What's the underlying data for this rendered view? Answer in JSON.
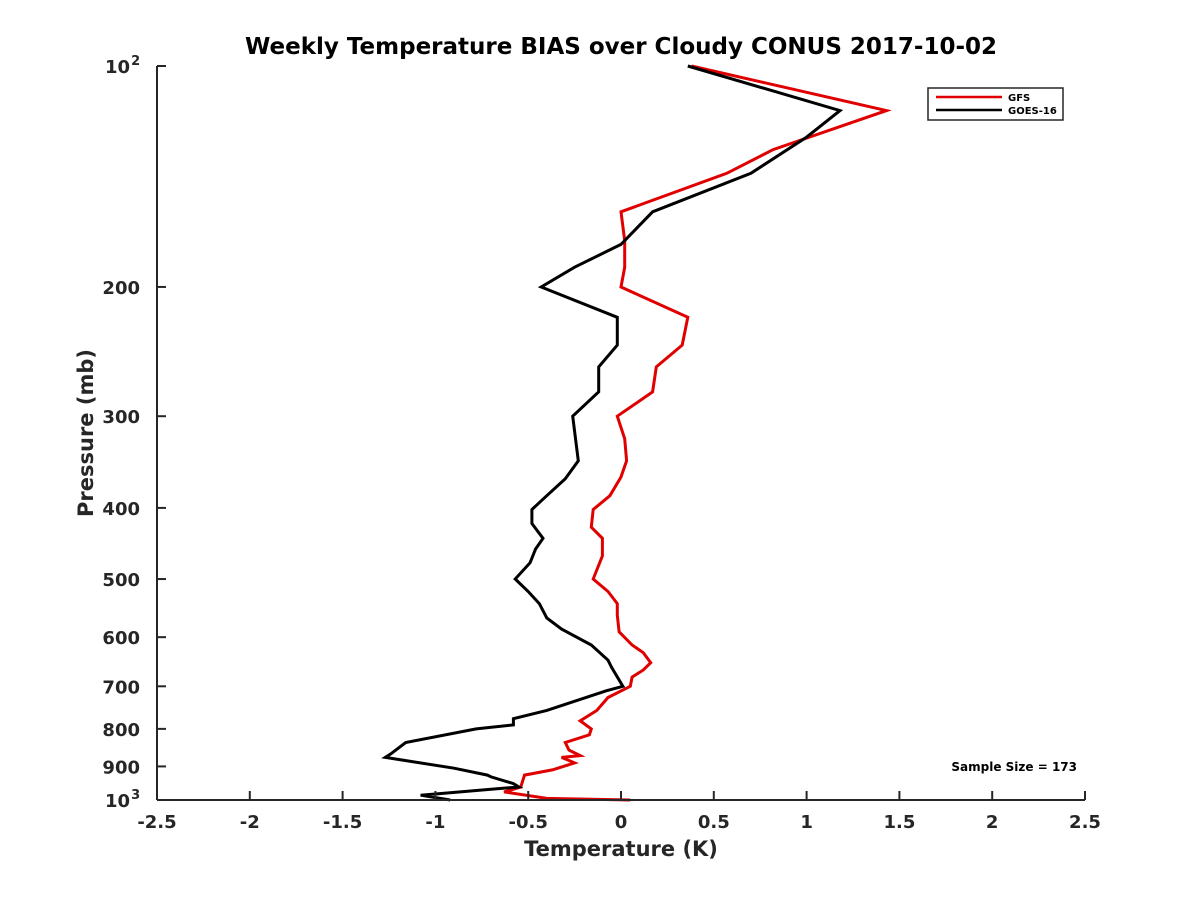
{
  "chart_data": {
    "type": "line",
    "title": "Weekly Temperature BIAS over Cloudy CONUS 2017-10-02",
    "xlabel": "Temperature (K)",
    "ylabel": "Pressure (mb)",
    "xlim": [
      -2.5,
      2.5
    ],
    "ylim": [
      100,
      1000
    ],
    "y_scale": "log",
    "y_direction": "reversed",
    "grid": false,
    "legend_position": "top-right",
    "x_ticks": [
      {
        "value": -2.5,
        "label": "-2.5"
      },
      {
        "value": -2,
        "label": "-2"
      },
      {
        "value": -1.5,
        "label": "-1.5"
      },
      {
        "value": -1,
        "label": "-1"
      },
      {
        "value": -0.5,
        "label": "-0.5"
      },
      {
        "value": 0,
        "label": "0"
      },
      {
        "value": 0.5,
        "label": "0.5"
      },
      {
        "value": 1,
        "label": "1"
      },
      {
        "value": 1.5,
        "label": "1.5"
      },
      {
        "value": 2,
        "label": "2"
      },
      {
        "value": 2.5,
        "label": "2.5"
      }
    ],
    "y_ticks": [
      {
        "value": 100,
        "label": "10",
        "sup": "2"
      },
      {
        "value": 200,
        "label": "200",
        "sup": ""
      },
      {
        "value": 300,
        "label": "300",
        "sup": ""
      },
      {
        "value": 400,
        "label": "400",
        "sup": ""
      },
      {
        "value": 500,
        "label": "500",
        "sup": ""
      },
      {
        "value": 600,
        "label": "600",
        "sup": ""
      },
      {
        "value": 700,
        "label": "700",
        "sup": ""
      },
      {
        "value": 800,
        "label": "800",
        "sup": ""
      },
      {
        "value": 900,
        "label": "900",
        "sup": ""
      },
      {
        "value": 1000,
        "label": "10",
        "sup": "3"
      }
    ],
    "series": [
      {
        "name": "GFS",
        "color": "#e00000",
        "points": [
          [
            0.38,
            100
          ],
          [
            1.43,
            115
          ],
          [
            0.82,
            130
          ],
          [
            0.57,
            140
          ],
          [
            0.0,
            158
          ],
          [
            0.02,
            173
          ],
          [
            0.02,
            188
          ],
          [
            0.0,
            200
          ],
          [
            0.36,
            220
          ],
          [
            0.33,
            240
          ],
          [
            0.19,
            257
          ],
          [
            0.17,
            278
          ],
          [
            -0.02,
            300
          ],
          [
            0.02,
            322
          ],
          [
            0.03,
            345
          ],
          [
            0.0,
            363
          ],
          [
            -0.06,
            385
          ],
          [
            -0.15,
            402
          ],
          [
            -0.16,
            425
          ],
          [
            -0.1,
            440
          ],
          [
            -0.1,
            465
          ],
          [
            -0.15,
            500
          ],
          [
            -0.07,
            520
          ],
          [
            -0.02,
            540
          ],
          [
            -0.02,
            560
          ],
          [
            -0.01,
            590
          ],
          [
            0.06,
            615
          ],
          [
            0.12,
            630
          ],
          [
            0.16,
            650
          ],
          [
            0.12,
            665
          ],
          [
            0.06,
            680
          ],
          [
            0.05,
            700
          ],
          [
            -0.07,
            725
          ],
          [
            -0.13,
            755
          ],
          [
            -0.22,
            780
          ],
          [
            -0.16,
            800
          ],
          [
            -0.17,
            815
          ],
          [
            -0.3,
            835
          ],
          [
            -0.28,
            855
          ],
          [
            -0.22,
            870
          ],
          [
            -0.32,
            875
          ],
          [
            -0.25,
            890
          ],
          [
            -0.37,
            910
          ],
          [
            -0.52,
            925
          ],
          [
            -0.54,
            960
          ],
          [
            -0.63,
            975
          ],
          [
            -0.4,
            995
          ],
          [
            0.05,
            1000
          ]
        ]
      },
      {
        "name": "GOES-16",
        "color": "#000000",
        "points": [
          [
            0.36,
            100
          ],
          [
            1.18,
            115
          ],
          [
            1.0,
            125
          ],
          [
            0.7,
            140
          ],
          [
            0.17,
            158
          ],
          [
            0.0,
            175
          ],
          [
            -0.25,
            188
          ],
          [
            -0.43,
            200
          ],
          [
            -0.02,
            220
          ],
          [
            -0.02,
            240
          ],
          [
            -0.12,
            257
          ],
          [
            -0.12,
            278
          ],
          [
            -0.26,
            300
          ],
          [
            -0.23,
            345
          ],
          [
            -0.3,
            365
          ],
          [
            -0.4,
            385
          ],
          [
            -0.48,
            402
          ],
          [
            -0.48,
            420
          ],
          [
            -0.42,
            440
          ],
          [
            -0.46,
            455
          ],
          [
            -0.49,
            475
          ],
          [
            -0.57,
            500
          ],
          [
            -0.5,
            520
          ],
          [
            -0.44,
            540
          ],
          [
            -0.4,
            565
          ],
          [
            -0.32,
            585
          ],
          [
            -0.16,
            615
          ],
          [
            -0.07,
            645
          ],
          [
            -0.05,
            660
          ],
          [
            0.01,
            700
          ],
          [
            -0.08,
            710
          ],
          [
            -0.4,
            755
          ],
          [
            -0.58,
            775
          ],
          [
            -0.58,
            790
          ],
          [
            -0.78,
            800
          ],
          [
            -1.16,
            835
          ],
          [
            -1.24,
            865
          ],
          [
            -1.27,
            875
          ],
          [
            -0.9,
            905
          ],
          [
            -0.72,
            925
          ],
          [
            -0.7,
            930
          ],
          [
            -0.58,
            950
          ],
          [
            -0.55,
            960
          ],
          [
            -0.66,
            965
          ],
          [
            -1.08,
            985
          ],
          [
            -0.92,
            1000
          ]
        ]
      }
    ],
    "annotations": [
      {
        "text": "Sample Size = 173",
        "x": 2.3,
        "y": 900
      }
    ]
  }
}
